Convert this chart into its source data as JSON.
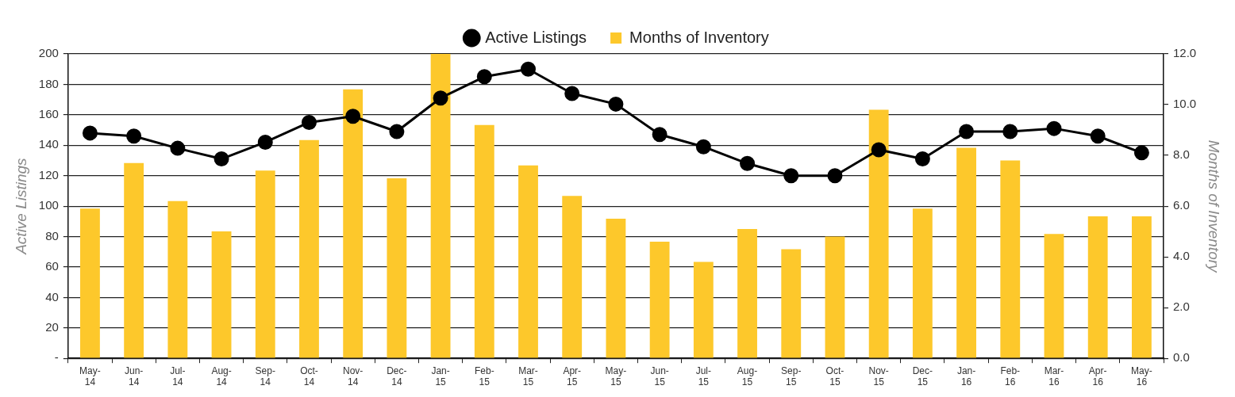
{
  "chart_data": {
    "type": "bar",
    "categories": [
      "May-14",
      "Jun-14",
      "Jul-14",
      "Aug-14",
      "Sep-14",
      "Oct-14",
      "Nov-14",
      "Dec-14",
      "Jan-15",
      "Feb-15",
      "Mar-15",
      "Apr-15",
      "May-15",
      "Jun-15",
      "Jul-15",
      "Aug-15",
      "Sep-15",
      "Oct-15",
      "Nov-15",
      "Dec-15",
      "Jan-16",
      "Feb-16",
      "Mar-16",
      "Apr-16",
      "May-16"
    ],
    "series": [
      {
        "name": "Active Listings",
        "type": "line",
        "color": "#000000",
        "values": [
          148,
          146,
          138,
          131,
          142,
          155,
          159,
          149,
          171,
          185,
          190,
          174,
          167,
          147,
          139,
          128,
          120,
          120,
          137,
          131,
          149,
          149,
          151,
          146,
          135
        ]
      },
      {
        "name": "Months of Inventory",
        "axis": "y2",
        "color": "#fdc82b",
        "values": [
          5.9,
          7.7,
          6.2,
          5.0,
          7.4,
          8.6,
          10.6,
          7.1,
          12.0,
          9.2,
          7.6,
          6.4,
          5.5,
          4.6,
          3.8,
          5.1,
          4.3,
          4.8,
          9.8,
          5.9,
          8.3,
          7.8,
          4.9,
          5.6,
          5.6
        ]
      }
    ],
    "ylabel": "Active Listings",
    "y2label": "Months of Inventory",
    "ylim": [
      0,
      200
    ],
    "yticks": [
      {
        "value": 0,
        "label": "-"
      },
      20,
      40,
      60,
      80,
      100,
      120,
      140,
      160,
      180,
      200
    ],
    "y2lim": [
      0,
      12
    ],
    "y2ticks": [
      {
        "value": 0,
        "label": "0.0"
      },
      {
        "value": 2,
        "label": "2.0"
      },
      {
        "value": 4,
        "label": "4.0"
      },
      {
        "value": 6,
        "label": "6.0"
      },
      {
        "value": 8,
        "label": "8.0"
      },
      {
        "value": 10,
        "label": "10.0"
      },
      {
        "value": 12,
        "label": "12.0"
      }
    ],
    "grid": "y",
    "legend": "top",
    "marker": "circle",
    "line_style": "solid"
  }
}
